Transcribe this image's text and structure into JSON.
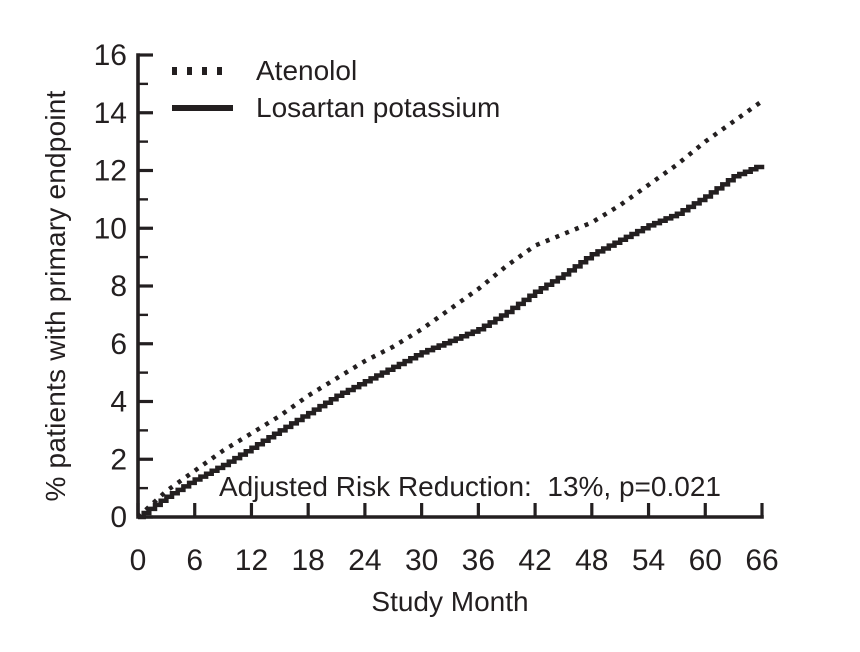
{
  "figure": {
    "background": "#ffffff",
    "ink_color": "#231f20"
  },
  "chart_data": {
    "type": "line",
    "title": "",
    "xlabel": "Study Month",
    "ylabel": "% patients with primary endpoint",
    "xlim": [
      0,
      66
    ],
    "ylim": [
      0,
      16
    ],
    "x_ticks": [
      0,
      6,
      12,
      18,
      24,
      30,
      36,
      42,
      48,
      54,
      60,
      66
    ],
    "y_ticks": [
      0,
      2,
      4,
      6,
      8,
      10,
      12,
      14,
      16
    ],
    "y_minor_ticks": [
      1,
      3,
      5,
      7,
      9,
      11,
      13,
      15
    ],
    "grid": false,
    "legend_position": "top-left-inside",
    "x": [
      0,
      3,
      6,
      9,
      12,
      15,
      18,
      21,
      24,
      27,
      30,
      33,
      36,
      39,
      42,
      45,
      48,
      51,
      54,
      57,
      60,
      63,
      66
    ],
    "series": [
      {
        "name": "Atenolol",
        "style": "dotted",
        "values": [
          0,
          0.9,
          1.6,
          2.3,
          2.9,
          3.5,
          4.2,
          4.8,
          5.4,
          5.9,
          6.5,
          7.2,
          7.9,
          8.7,
          9.4,
          9.8,
          10.2,
          10.8,
          11.5,
          12.2,
          13.0,
          13.7,
          14.4
        ]
      },
      {
        "name": "Losartan potassium",
        "style": "solid",
        "values": [
          0,
          0.7,
          1.3,
          1.8,
          2.4,
          3.0,
          3.6,
          4.2,
          4.7,
          5.2,
          5.7,
          6.1,
          6.5,
          7.1,
          7.8,
          8.4,
          9.1,
          9.6,
          10.1,
          10.5,
          11.1,
          11.8,
          12.2
        ]
      }
    ],
    "annotation": "Adjusted Risk Reduction:  13%, p=0.021"
  }
}
